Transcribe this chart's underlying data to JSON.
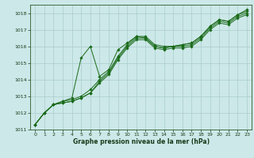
{
  "background_color": "#cce8e8",
  "grid_color": "#aacccc",
  "line_color": "#1a6b1a",
  "xlabel": "Graphe pression niveau de la mer (hPa)",
  "xlim": [
    -0.5,
    23.5
  ],
  "ylim": [
    1011,
    1018.5
  ],
  "yticks": [
    1011,
    1012,
    1013,
    1014,
    1015,
    1016,
    1017,
    1018
  ],
  "xticks": [
    0,
    1,
    2,
    3,
    4,
    5,
    6,
    7,
    8,
    9,
    10,
    11,
    12,
    13,
    14,
    15,
    16,
    17,
    18,
    19,
    20,
    21,
    22,
    23
  ],
  "series": [
    [
      1011.3,
      1012.0,
      1012.5,
      1012.6,
      1012.7,
      1012.9,
      1013.2,
      1013.8,
      1014.3,
      1015.2,
      1015.9,
      1016.4,
      1016.4,
      1015.9,
      1015.8,
      1015.9,
      1015.9,
      1016.0,
      1016.4,
      1017.0,
      1017.4,
      1017.3,
      1017.7,
      1017.9
    ],
    [
      1011.3,
      1012.0,
      1012.5,
      1012.6,
      1012.7,
      1012.9,
      1013.2,
      1013.9,
      1014.4,
      1015.3,
      1016.0,
      1016.5,
      1016.5,
      1016.0,
      1015.9,
      1016.0,
      1016.0,
      1016.1,
      1016.5,
      1017.1,
      1017.5,
      1017.4,
      1017.8,
      1018.0
    ],
    [
      1011.3,
      1012.0,
      1012.5,
      1012.7,
      1012.8,
      1013.0,
      1013.4,
      1014.0,
      1014.5,
      1015.4,
      1016.1,
      1016.6,
      1016.6,
      1016.1,
      1016.0,
      1016.0,
      1016.1,
      1016.2,
      1016.6,
      1017.2,
      1017.6,
      1017.5,
      1017.9,
      1018.1
    ],
    [
      1011.3,
      1012.0,
      1012.5,
      1012.7,
      1012.9,
      1015.3,
      1016.0,
      1014.2,
      1014.6,
      1015.8,
      1016.2,
      1016.6,
      1016.5,
      1016.0,
      1015.9,
      1016.0,
      1016.1,
      1016.2,
      1016.6,
      1017.2,
      1017.6,
      1017.5,
      1017.9,
      1018.2
    ]
  ],
  "tick_labelsize": 4.5,
  "xlabel_fontsize": 5.5,
  "marker": "D",
  "markersize": 1.8,
  "linewidth": 0.7
}
